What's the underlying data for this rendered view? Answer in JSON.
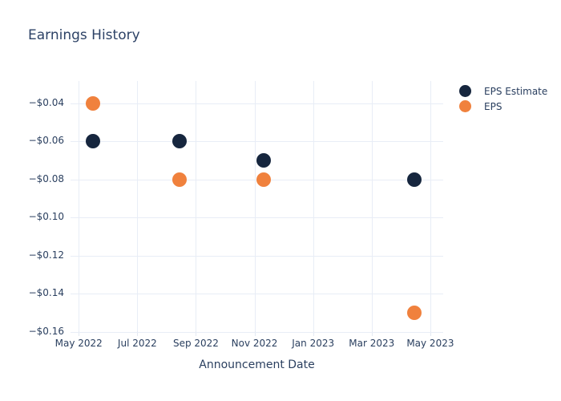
{
  "title": "Earnings History",
  "x_axis_title": "Announcement Date",
  "colors": {
    "eps_estimate": "#16263E",
    "eps": "#F0813D",
    "text": "#2a3f5f",
    "grid": "#e8edf6",
    "background": "#ffffff"
  },
  "legend": {
    "items": [
      {
        "label": "EPS Estimate",
        "color": "#16263E"
      },
      {
        "label": "EPS",
        "color": "#F0813D"
      }
    ]
  },
  "chart_data": {
    "type": "scatter",
    "title": "Earnings History",
    "xlabel": "Announcement Date",
    "ylabel": "",
    "grid": true,
    "legend_position": "outside-right-top",
    "x_axis": {
      "unit": "months since 2022-05-01",
      "range": [
        -0.28,
        12.44
      ],
      "ticks": [
        {
          "pos": 0,
          "label": "May 2022"
        },
        {
          "pos": 2,
          "label": "Jul 2022"
        },
        {
          "pos": 4,
          "label": "Sep 2022"
        },
        {
          "pos": 6,
          "label": "Nov 2022"
        },
        {
          "pos": 8,
          "label": "Jan 2023"
        },
        {
          "pos": 10,
          "label": "Mar 2023"
        },
        {
          "pos": 12,
          "label": "May 2023"
        }
      ]
    },
    "y_axis": {
      "unit": "USD per share",
      "range": [
        -0.1597,
        -0.0282
      ],
      "ticks": [
        {
          "value": -0.04,
          "label": "−$0.04"
        },
        {
          "value": -0.06,
          "label": "−$0.06"
        },
        {
          "value": -0.08,
          "label": "−$0.08"
        },
        {
          "value": -0.1,
          "label": "−$0.10"
        },
        {
          "value": -0.12,
          "label": "−$0.12"
        },
        {
          "value": -0.14,
          "label": "−$0.14"
        },
        {
          "value": -0.16,
          "label": "−$0.16"
        }
      ]
    },
    "series": [
      {
        "name": "EPS Estimate",
        "color": "#16263E",
        "points": [
          {
            "x": 0.48,
            "date_approx": "2022-05-15",
            "y": -0.06
          },
          {
            "x": 3.44,
            "date_approx": "2022-08-14",
            "y": -0.06
          },
          {
            "x": 6.31,
            "date_approx": "2022-11-10",
            "y": -0.07
          },
          {
            "x": 11.46,
            "date_approx": "2023-04-14",
            "y": -0.08
          }
        ]
      },
      {
        "name": "EPS",
        "color": "#F0813D",
        "points": [
          {
            "x": 0.48,
            "date_approx": "2022-05-15",
            "y": -0.04
          },
          {
            "x": 3.44,
            "date_approx": "2022-08-14",
            "y": -0.08
          },
          {
            "x": 6.31,
            "date_approx": "2022-11-10",
            "y": -0.08
          },
          {
            "x": 11.46,
            "date_approx": "2023-04-14",
            "y": -0.15
          }
        ]
      }
    ]
  }
}
